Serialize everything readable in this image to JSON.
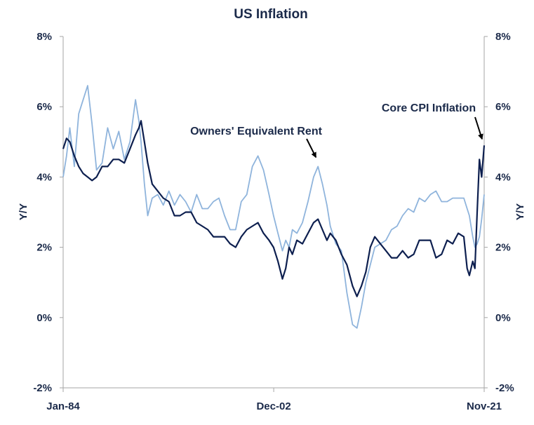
{
  "chart_data": {
    "type": "line",
    "title": "US Inflation",
    "ylabel_left": "Y/Y",
    "ylabel_right": "Y/Y",
    "y_ticks": [
      "8%",
      "6%",
      "4%",
      "2%",
      "0%",
      "-2%"
    ],
    "y_tick_values": [
      8,
      6,
      4,
      2,
      0,
      -2
    ],
    "ylim": [
      -2,
      8
    ],
    "x_ticks": [
      "Jan-84",
      "Dec-02",
      "Nov-21"
    ],
    "x_tick_values": [
      1984.0,
      2002.92,
      2021.83
    ],
    "xlim": [
      1984.0,
      2021.83
    ],
    "grid": false,
    "annotations": [
      {
        "text": "Owners' Equivalent Rent",
        "x": 2006.9,
        "y": 4.4
      },
      {
        "text": "Core CPI Inflation",
        "x": 2021.83,
        "y": 5.0
      }
    ],
    "series": [
      {
        "name": "Core CPI Inflation",
        "color": "#0d1f4f",
        "x": [
          1984.0,
          1984.3,
          1984.6,
          1985.0,
          1985.4,
          1985.8,
          1986.2,
          1986.6,
          1987.0,
          1987.5,
          1988.0,
          1988.5,
          1989.0,
          1989.5,
          1990.0,
          1990.5,
          1990.8,
          1991.0,
          1991.3,
          1991.6,
          1992.0,
          1992.5,
          1993.0,
          1993.5,
          1994.0,
          1994.5,
          1995.0,
          1995.5,
          1996.0,
          1996.5,
          1997.0,
          1997.5,
          1998.0,
          1998.5,
          1999.0,
          1999.5,
          2000.0,
          2000.5,
          2001.0,
          2001.5,
          2002.0,
          2002.5,
          2002.9,
          2003.3,
          2003.7,
          2004.0,
          2004.3,
          2004.6,
          2005.0,
          2005.5,
          2006.0,
          2006.5,
          2006.9,
          2007.3,
          2007.7,
          2008.0,
          2008.5,
          2009.0,
          2009.5,
          2010.0,
          2010.4,
          2010.8,
          2011.2,
          2011.6,
          2012.0,
          2012.5,
          2013.0,
          2013.5,
          2014.0,
          2014.5,
          2015.0,
          2015.5,
          2016.0,
          2016.5,
          2017.0,
          2017.5,
          2018.0,
          2018.5,
          2019.0,
          2019.5,
          2020.0,
          2020.3,
          2020.5,
          2020.8,
          2021.0,
          2021.2,
          2021.4,
          2021.6,
          2021.83
        ],
        "values": [
          4.8,
          5.1,
          5.0,
          4.6,
          4.3,
          4.1,
          4.0,
          3.9,
          4.0,
          4.3,
          4.3,
          4.5,
          4.5,
          4.4,
          4.8,
          5.2,
          5.4,
          5.6,
          5.0,
          4.4,
          3.8,
          3.6,
          3.4,
          3.3,
          2.9,
          2.9,
          3.0,
          3.0,
          2.7,
          2.6,
          2.5,
          2.3,
          2.3,
          2.3,
          2.1,
          2.0,
          2.3,
          2.5,
          2.6,
          2.7,
          2.4,
          2.2,
          2.0,
          1.6,
          1.1,
          1.4,
          2.0,
          1.8,
          2.2,
          2.1,
          2.4,
          2.7,
          2.8,
          2.5,
          2.2,
          2.4,
          2.2,
          1.8,
          1.5,
          0.9,
          0.6,
          0.9,
          1.3,
          2.0,
          2.3,
          2.1,
          1.9,
          1.7,
          1.7,
          1.9,
          1.7,
          1.8,
          2.2,
          2.2,
          2.2,
          1.7,
          1.8,
          2.2,
          2.1,
          2.4,
          2.3,
          1.4,
          1.2,
          1.6,
          1.4,
          3.0,
          4.5,
          4.0,
          4.9
        ]
      },
      {
        "name": "Owners' Equivalent Rent",
        "color": "#8fb4dc",
        "x": [
          1984.0,
          1984.3,
          1984.6,
          1985.0,
          1985.4,
          1985.8,
          1986.2,
          1986.6,
          1987.0,
          1987.5,
          1988.0,
          1988.5,
          1989.0,
          1989.5,
          1990.0,
          1990.5,
          1990.8,
          1991.0,
          1991.3,
          1991.6,
          1992.0,
          1992.5,
          1993.0,
          1993.5,
          1994.0,
          1994.5,
          1995.0,
          1995.5,
          1996.0,
          1996.5,
          1997.0,
          1997.5,
          1998.0,
          1998.5,
          1999.0,
          1999.5,
          2000.0,
          2000.5,
          2001.0,
          2001.5,
          2002.0,
          2002.5,
          2002.9,
          2003.3,
          2003.7,
          2004.0,
          2004.3,
          2004.6,
          2005.0,
          2005.5,
          2006.0,
          2006.5,
          2006.9,
          2007.3,
          2007.7,
          2008.0,
          2008.5,
          2009.0,
          2009.5,
          2010.0,
          2010.4,
          2010.8,
          2011.2,
          2011.6,
          2012.0,
          2012.5,
          2013.0,
          2013.5,
          2014.0,
          2014.5,
          2015.0,
          2015.5,
          2016.0,
          2016.5,
          2017.0,
          2017.5,
          2018.0,
          2018.5,
          2019.0,
          2019.5,
          2020.0,
          2020.3,
          2020.5,
          2020.8,
          2021.0,
          2021.2,
          2021.4,
          2021.6,
          2021.83
        ],
        "values": [
          4.0,
          4.6,
          5.4,
          4.3,
          5.8,
          6.2,
          6.6,
          5.5,
          4.2,
          4.4,
          5.4,
          4.8,
          5.3,
          4.5,
          5.0,
          6.2,
          5.6,
          5.0,
          3.8,
          2.9,
          3.4,
          3.5,
          3.2,
          3.6,
          3.2,
          3.5,
          3.3,
          3.0,
          3.5,
          3.1,
          3.1,
          3.3,
          3.4,
          2.9,
          2.5,
          2.5,
          3.3,
          3.5,
          4.3,
          4.6,
          4.2,
          3.5,
          2.9,
          2.4,
          1.9,
          2.2,
          2.0,
          2.5,
          2.4,
          2.7,
          3.3,
          4.0,
          4.3,
          3.8,
          3.2,
          2.6,
          2.1,
          1.9,
          0.7,
          -0.2,
          -0.3,
          0.3,
          1.0,
          1.5,
          2.0,
          2.1,
          2.2,
          2.5,
          2.6,
          2.9,
          3.1,
          3.0,
          3.4,
          3.3,
          3.5,
          3.6,
          3.3,
          3.3,
          3.4,
          3.4,
          3.4,
          3.1,
          2.9,
          2.3,
          2.0,
          2.1,
          2.3,
          2.8,
          3.5
        ]
      }
    ]
  }
}
